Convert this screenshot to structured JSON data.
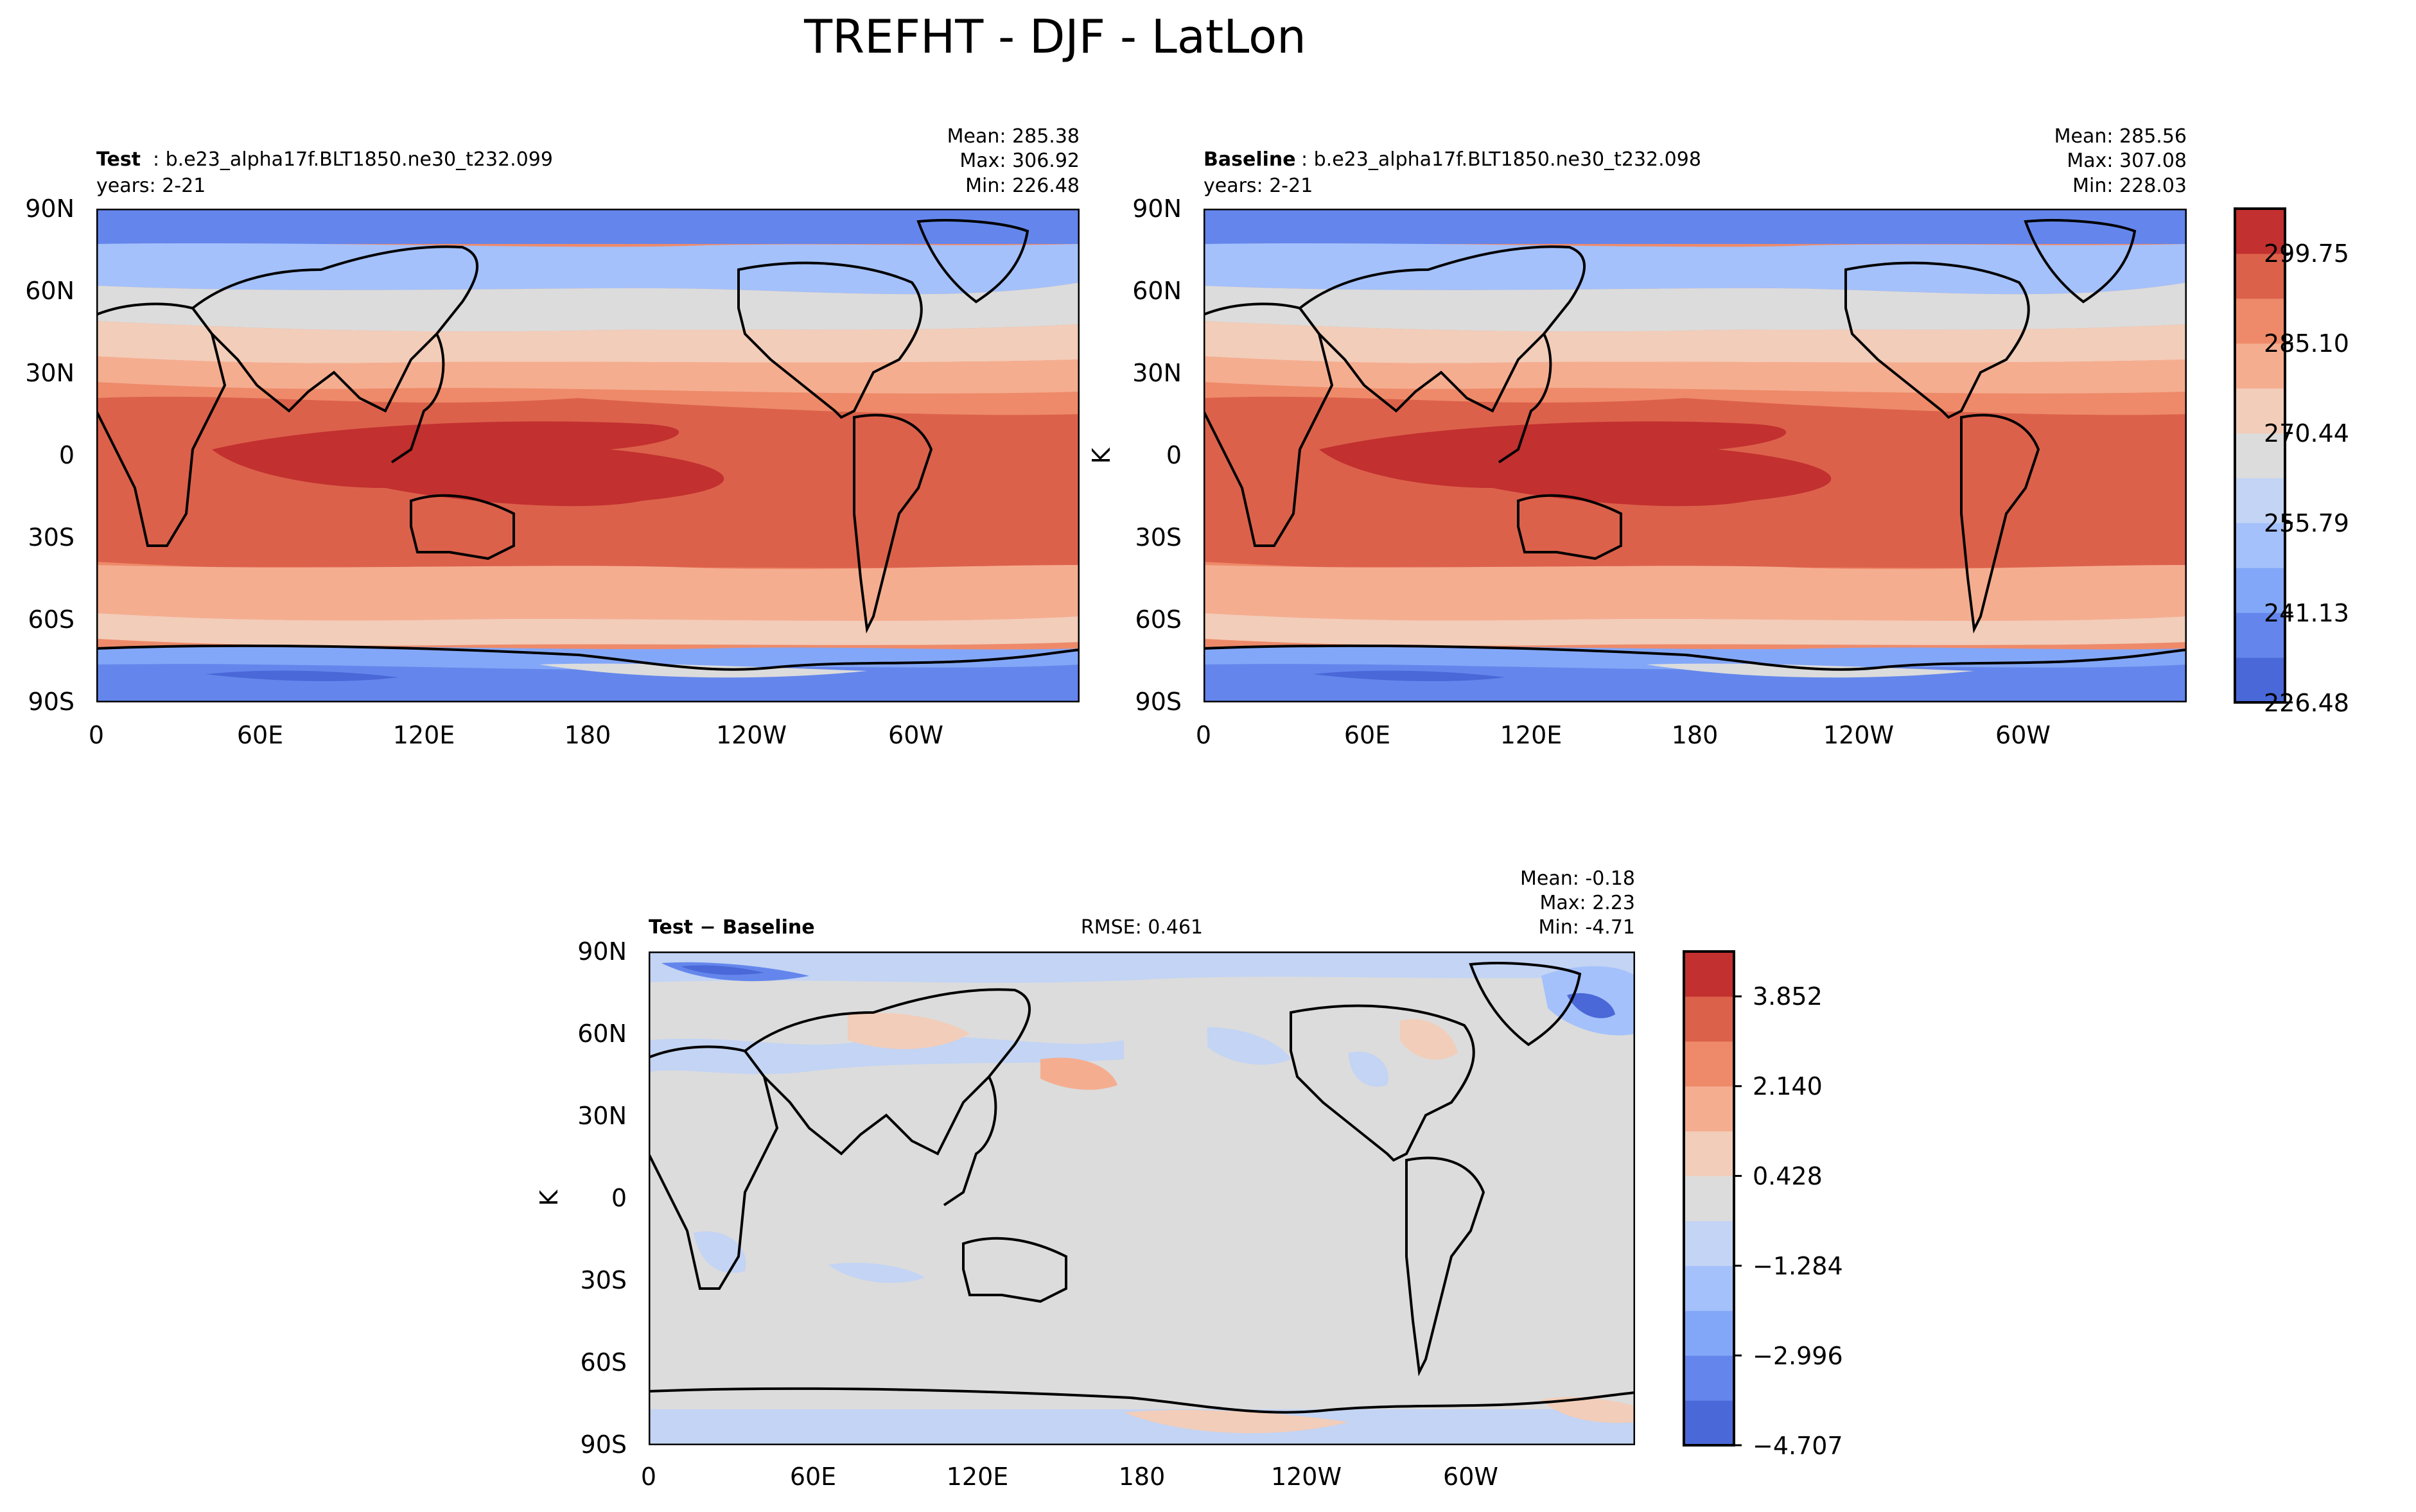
{
  "figure": {
    "title": "TREFHT - DJF - LatLon"
  },
  "chart_data": [
    {
      "type": "heatmap",
      "id": "test",
      "title_bold": "Test",
      "title_rest": ": b.e23_alpha17f.BLT1850.ne30_t232.099",
      "subtitle": "years: 2-21",
      "stats": [
        "Mean: 285.38",
        "Max: 306.92",
        "Min: 226.48"
      ],
      "ylabel": "",
      "xticks": [
        "0",
        "60E",
        "120E",
        "180",
        "120W",
        "60W"
      ],
      "yticks": [
        "90N",
        "60N",
        "30N",
        "0",
        "30S",
        "60S",
        "90S"
      ],
      "xlim": [
        0,
        360
      ],
      "ylim": [
        -90,
        90
      ]
    },
    {
      "type": "heatmap",
      "id": "baseline",
      "title_bold": "Baseline",
      "title_rest": ": b.e23_alpha17f.BLT1850.ne30_t232.098",
      "subtitle": "years: 2-21",
      "stats": [
        "Mean: 285.56",
        "Max: 307.08",
        "Min: 228.03"
      ],
      "ylabel": "K",
      "xticks": [
        "0",
        "60E",
        "120E",
        "180",
        "120W",
        "60W"
      ],
      "yticks": [
        "90N",
        "60N",
        "30N",
        "0",
        "30S",
        "60S",
        "90S"
      ],
      "xlim": [
        0,
        360
      ],
      "ylim": [
        -90,
        90
      ],
      "colorbar": {
        "ticks": [
          "299.75",
          "285.10",
          "270.44",
          "255.79",
          "241.13",
          "226.48"
        ],
        "colors": [
          "#4a68d8",
          "#6486ec",
          "#83a7f8",
          "#a4c1fb",
          "#c3d4f4",
          "#dcdcdc",
          "#f2cdb9",
          "#f5ad90",
          "#ee8a69",
          "#dc614b",
          "#c2302f"
        ]
      }
    },
    {
      "type": "heatmap",
      "id": "diff",
      "title_bold": "Test − Baseline",
      "title_center": "RMSE: 0.461",
      "stats": [
        "Mean: -0.18",
        "Max:  2.23",
        "Min: -4.71"
      ],
      "ylabel": "K",
      "xticks": [
        "0",
        "60E",
        "120E",
        "180",
        "120W",
        "60W"
      ],
      "yticks": [
        "90N",
        "60N",
        "30N",
        "0",
        "30S",
        "60S",
        "90S"
      ],
      "xlim": [
        0,
        360
      ],
      "ylim": [
        -90,
        90
      ],
      "colorbar": {
        "ticks": [
          "3.852",
          "2.140",
          "0.428",
          "−1.284",
          "−2.996",
          "−4.707"
        ],
        "colors": [
          "#4a68d8",
          "#6486ec",
          "#83a7f8",
          "#a4c1fb",
          "#c3d4f4",
          "#dcdcdc",
          "#f2cdb9",
          "#f5ad90",
          "#ee8a69",
          "#dc614b",
          "#c2302f"
        ]
      }
    }
  ]
}
